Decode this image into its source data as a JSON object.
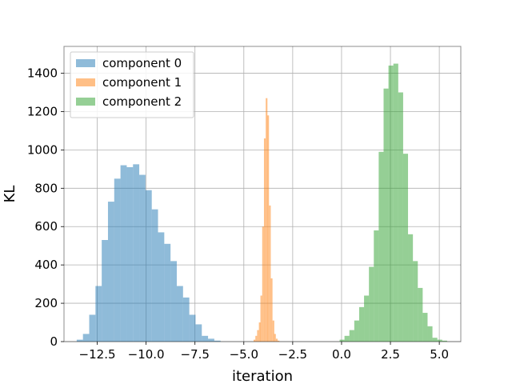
{
  "chart_data": {
    "type": "bar",
    "subtype": "histogram",
    "xlabel": "iteration",
    "ylabel": "KL",
    "xlim": [
      -14.2,
      6.1
    ],
    "ylim": [
      0,
      1540
    ],
    "grid": true,
    "legend_position": "top-left",
    "xticks": [
      -12.5,
      -10.0,
      -7.5,
      -5.0,
      -2.5,
      0.0,
      2.5,
      5.0
    ],
    "xtick_labels": [
      "−12.5",
      "−10.0",
      "−7.5",
      "−5.0",
      "−2.5",
      "0.0",
      "2.5",
      "5.0"
    ],
    "yticks": [
      0,
      200,
      400,
      600,
      800,
      1000,
      1200,
      1400
    ],
    "ytick_labels": [
      "0",
      "200",
      "400",
      "600",
      "800",
      "1000",
      "1200",
      "1400"
    ],
    "series": [
      {
        "name": "component 0",
        "color": "#1f77b4",
        "alpha": 0.5,
        "bin_width": 0.32,
        "bins": [
          [
            -13.55,
            10
          ],
          [
            -13.23,
            40
          ],
          [
            -12.91,
            140
          ],
          [
            -12.59,
            290
          ],
          [
            -12.27,
            530
          ],
          [
            -11.95,
            730
          ],
          [
            -11.63,
            850
          ],
          [
            -11.31,
            920
          ],
          [
            -10.99,
            910
          ],
          [
            -10.67,
            925
          ],
          [
            -10.35,
            870
          ],
          [
            -10.03,
            790
          ],
          [
            -9.71,
            690
          ],
          [
            -9.39,
            570
          ],
          [
            -9.07,
            510
          ],
          [
            -8.75,
            420
          ],
          [
            -8.43,
            290
          ],
          [
            -8.11,
            230
          ],
          [
            -7.79,
            140
          ],
          [
            -7.47,
            90
          ],
          [
            -7.15,
            30
          ],
          [
            -6.83,
            15
          ],
          [
            -6.51,
            5
          ]
        ]
      },
      {
        "name": "component 1",
        "color": "#ff7f0e",
        "alpha": 0.5,
        "bin_width": 0.0875,
        "bins": [
          [
            -4.5,
            10
          ],
          [
            -4.41,
            30
          ],
          [
            -4.32,
            60
          ],
          [
            -4.23,
            100
          ],
          [
            -4.15,
            240
          ],
          [
            -4.06,
            600
          ],
          [
            -3.97,
            1060
          ],
          [
            -3.88,
            1270
          ],
          [
            -3.8,
            1180
          ],
          [
            -3.71,
            710
          ],
          [
            -3.62,
            330
          ],
          [
            -3.53,
            110
          ],
          [
            -3.45,
            40
          ],
          [
            -3.36,
            15
          ],
          [
            -3.27,
            5
          ]
        ]
      },
      {
        "name": "component 2",
        "color": "#2ca02c",
        "alpha": 0.5,
        "bin_width": 0.25,
        "bins": [
          [
            -0.1,
            10
          ],
          [
            0.15,
            30
          ],
          [
            0.4,
            60
          ],
          [
            0.65,
            110
          ],
          [
            0.9,
            180
          ],
          [
            1.15,
            240
          ],
          [
            1.4,
            390
          ],
          [
            1.65,
            580
          ],
          [
            1.9,
            990
          ],
          [
            2.15,
            1320
          ],
          [
            2.4,
            1440
          ],
          [
            2.65,
            1450
          ],
          [
            2.9,
            1300
          ],
          [
            3.15,
            980
          ],
          [
            3.4,
            560
          ],
          [
            3.65,
            420
          ],
          [
            3.9,
            280
          ],
          [
            4.15,
            150
          ],
          [
            4.4,
            80
          ],
          [
            4.65,
            20
          ],
          [
            4.9,
            10
          ],
          [
            5.15,
            5
          ]
        ]
      }
    ]
  }
}
